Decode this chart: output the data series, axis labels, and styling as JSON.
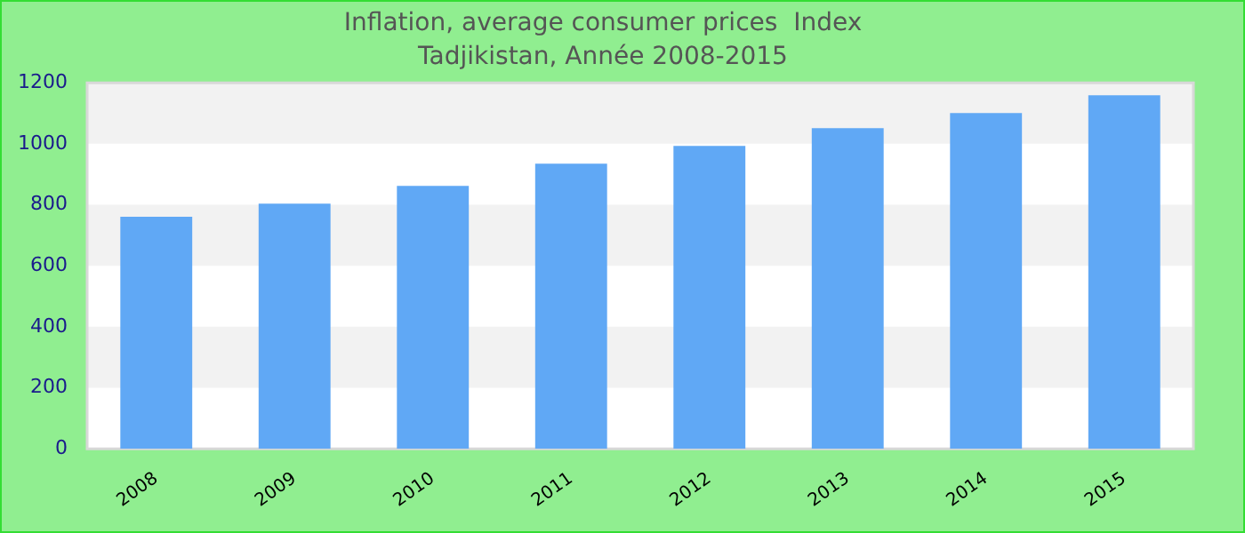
{
  "chart_data": {
    "type": "bar",
    "title": "Inflation, average consumer prices  Index",
    "subtitle": "Tadjikistan, Année 2008-2015",
    "categories": [
      "2008",
      "2009",
      "2010",
      "2011",
      "2012",
      "2013",
      "2014",
      "2015"
    ],
    "values": [
      761,
      804,
      862,
      935,
      993,
      1051,
      1101,
      1159
    ],
    "color": "#60a8f5",
    "ylim": [
      0,
      1200
    ],
    "yticks": [
      0,
      200,
      400,
      600,
      800,
      1000,
      1200
    ],
    "legend": false
  }
}
